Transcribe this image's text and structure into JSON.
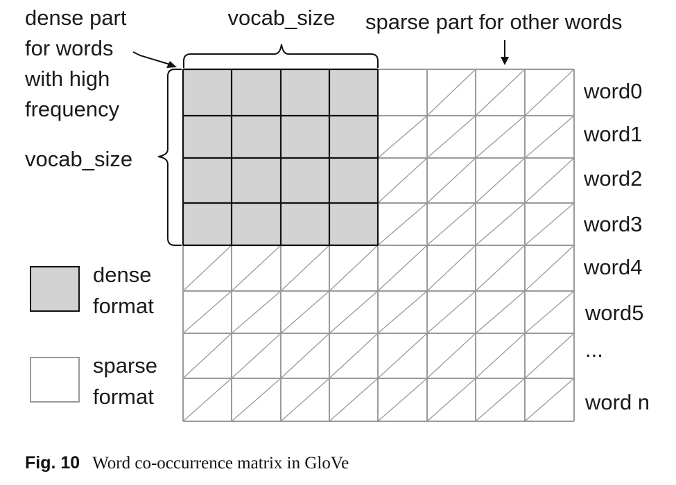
{
  "annotations": {
    "dense_part_lines": [
      "dense part",
      "for words",
      "with high",
      "frequency"
    ],
    "vocab_size_top": "vocab_size",
    "vocab_size_left": "vocab_size",
    "sparse_part": "sparse part for other words"
  },
  "row_labels": [
    "word0",
    "word1",
    "word2",
    "word3",
    "word4",
    "word5",
    "...",
    "word n"
  ],
  "legend": {
    "dense": {
      "lines": [
        "dense",
        "format"
      ],
      "color": "#d3d3d3"
    },
    "sparse": {
      "lines": [
        "sparse",
        "format"
      ],
      "color": "#ffffff"
    }
  },
  "grid": {
    "rows": 8,
    "cols": 8,
    "dense_rows": 4,
    "dense_cols": 4
  },
  "caption": {
    "number": "Fig. 10",
    "text": "Word co-occurrence matrix in GloVe"
  },
  "colors": {
    "dense_fill": "#d3d3d3",
    "sparse_line": "#9a9a9a",
    "dense_line": "#111111"
  }
}
